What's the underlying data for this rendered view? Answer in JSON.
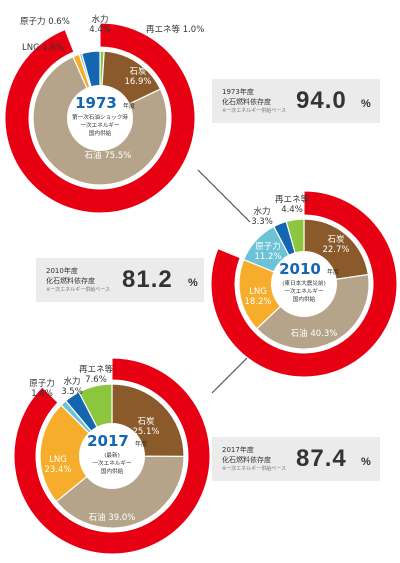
{
  "colors": {
    "outer": "#e60012",
    "oil": "#b6a48a",
    "coal": "#8b5a2b",
    "lng": "#f6ad2b",
    "nuclear": "#6cc3d5",
    "hydro": "#1466b0",
    "renewable": "#8cc63f",
    "center_year": "#1466b0"
  },
  "chart_data": [
    {
      "type": "pie",
      "id": "1973",
      "year": "1973",
      "year_suffix": "年度",
      "center_lines": [
        "第一次石油ショック時",
        "一次エネルギー",
        "国内供給"
      ],
      "fossil_share": 94.0,
      "slices": [
        {
          "name": "再エネ等",
          "value": 1.0,
          "color": "renewable",
          "display": "再エネ等 1.0%"
        },
        {
          "name": "石炭",
          "value": 16.9,
          "color": "coal",
          "display": "石炭 16.9%"
        },
        {
          "name": "石油",
          "value": 75.5,
          "color": "oil",
          "display": "石油 75.5%"
        },
        {
          "name": "LNG",
          "value": 1.6,
          "color": "lng",
          "display": "LNG 1.6%"
        },
        {
          "name": "原子力",
          "value": 0.6,
          "color": "nuclear",
          "display": "原子力 0.6%"
        },
        {
          "name": "水力",
          "value": 4.4,
          "color": "hydro",
          "display": "水力 4.4%"
        }
      ],
      "info": {
        "year_label": "1973年度",
        "label": "化石燃料依存度",
        "sublabel": "※一次エネルギー供給ベース",
        "value": "94.0",
        "unit": "%"
      }
    },
    {
      "type": "pie",
      "id": "2010",
      "year": "2010",
      "year_suffix": "年度",
      "center_lines": [
        "(東日本大震災前)",
        "一次エネルギー",
        "国内供給"
      ],
      "fossil_share": 81.2,
      "slices": [
        {
          "name": "石炭",
          "value": 22.7,
          "color": "coal",
          "display": "石炭 22.7%"
        },
        {
          "name": "石油",
          "value": 40.3,
          "color": "oil",
          "display": "石油 40.3%"
        },
        {
          "name": "LNG",
          "value": 18.2,
          "color": "lng",
          "display": "LNG 18.2%"
        },
        {
          "name": "原子力",
          "value": 11.2,
          "color": "nuclear",
          "display": "原子力 11.2%"
        },
        {
          "name": "水力",
          "value": 3.3,
          "color": "hydro",
          "display": "水力 3.3%"
        },
        {
          "name": "再エネ等",
          "value": 4.4,
          "color": "renewable",
          "display": "再エネ等 4.4%"
        }
      ],
      "info": {
        "year_label": "2010年度",
        "label": "化石燃料依存度",
        "sublabel": "※一次エネルギー供給ベース",
        "value": "81.2",
        "unit": "%"
      }
    },
    {
      "type": "pie",
      "id": "2017",
      "year": "2017",
      "year_suffix": "年度",
      "center_lines": [
        "(最新)",
        "一次エネルギー",
        "国内供給"
      ],
      "fossil_share": 87.4,
      "slices": [
        {
          "name": "石炭",
          "value": 25.1,
          "color": "coal",
          "display": "石炭 25.1%"
        },
        {
          "name": "石油",
          "value": 39.0,
          "color": "oil",
          "display": "石油 39.0%"
        },
        {
          "name": "LNG",
          "value": 23.4,
          "color": "lng",
          "display": "LNG 23.4%"
        },
        {
          "name": "原子力",
          "value": 1.4,
          "color": "nuclear",
          "display": "原子力 1.4%"
        },
        {
          "name": "水力",
          "value": 3.5,
          "color": "hydro",
          "display": "水力 3.5%"
        },
        {
          "name": "再エネ等",
          "value": 7.6,
          "color": "renewable",
          "display": "再エネ等 7.6%"
        }
      ],
      "info": {
        "year_label": "2017年度",
        "label": "化石燃料依存度",
        "sublabel": "※一次エネルギー供給ベース",
        "value": "87.4",
        "unit": "%"
      }
    }
  ]
}
